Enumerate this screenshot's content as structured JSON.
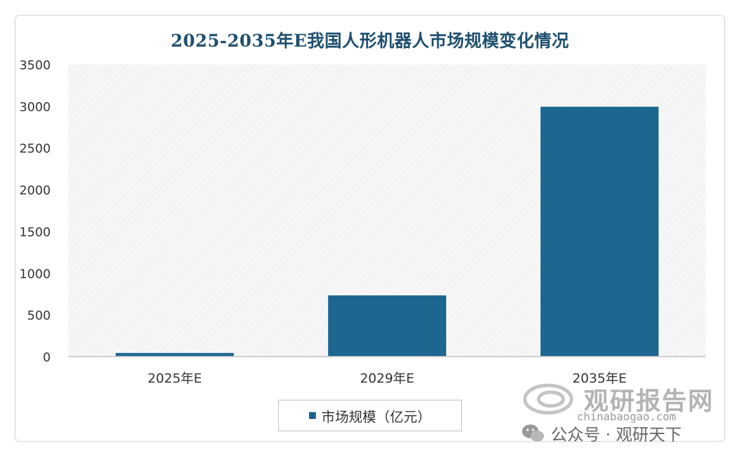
{
  "chart_data": {
    "type": "bar",
    "title": "2025-2035年E我国人形机器人市场规模变化情况",
    "categories": [
      "2025年E",
      "2029年E",
      "2035年E"
    ],
    "series": [
      {
        "name": "市场规模（亿元）",
        "values": [
          50,
          740,
          3000
        ]
      }
    ],
    "ylim": [
      0,
      3500
    ],
    "yticks": [
      0,
      500,
      1000,
      1500,
      2000,
      2500,
      3000,
      3500
    ],
    "xlabel": "",
    "ylabel": "",
    "grid": false,
    "legend_position": "bottom",
    "bar_color": "#1c6690"
  },
  "watermark": {
    "brand": "观研报告网",
    "url": "chinabaogao.com",
    "account": "公众号 · 观研天下"
  }
}
